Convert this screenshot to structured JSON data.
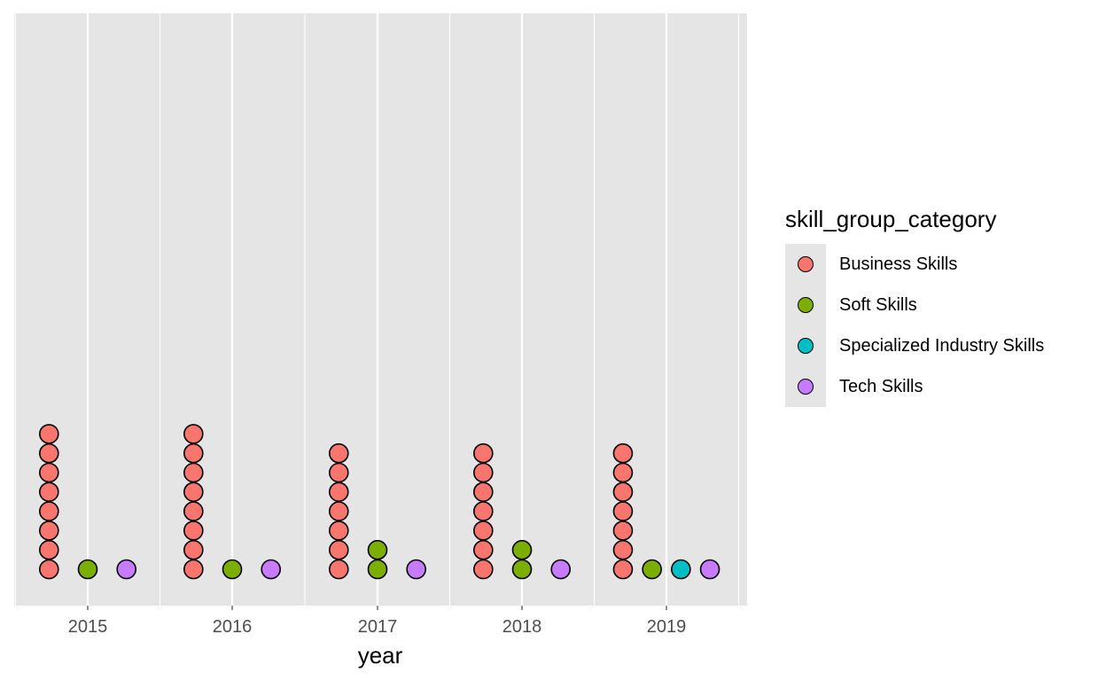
{
  "chart_data": {
    "type": "scatter",
    "subtype": "dotplot",
    "xlabel": "year",
    "ylabel": "",
    "categories": [
      "2015",
      "2016",
      "2017",
      "2018",
      "2019"
    ],
    "grid": true,
    "legend_placement": "right",
    "legend_title": "skill_group_category",
    "series": [
      {
        "name": "Business Skills",
        "color": "#F8766D",
        "values": [
          8,
          8,
          7,
          7,
          7
        ]
      },
      {
        "name": "Soft Skills",
        "color": "#7CAE00",
        "values": [
          1,
          1,
          2,
          2,
          1
        ]
      },
      {
        "name": "Specialized Industry Skills",
        "color": "#00BFC4",
        "values": [
          0,
          0,
          0,
          0,
          1
        ]
      },
      {
        "name": "Tech Skills",
        "color": "#C77CFF",
        "values": [
          1,
          1,
          1,
          1,
          1
        ]
      }
    ]
  }
}
